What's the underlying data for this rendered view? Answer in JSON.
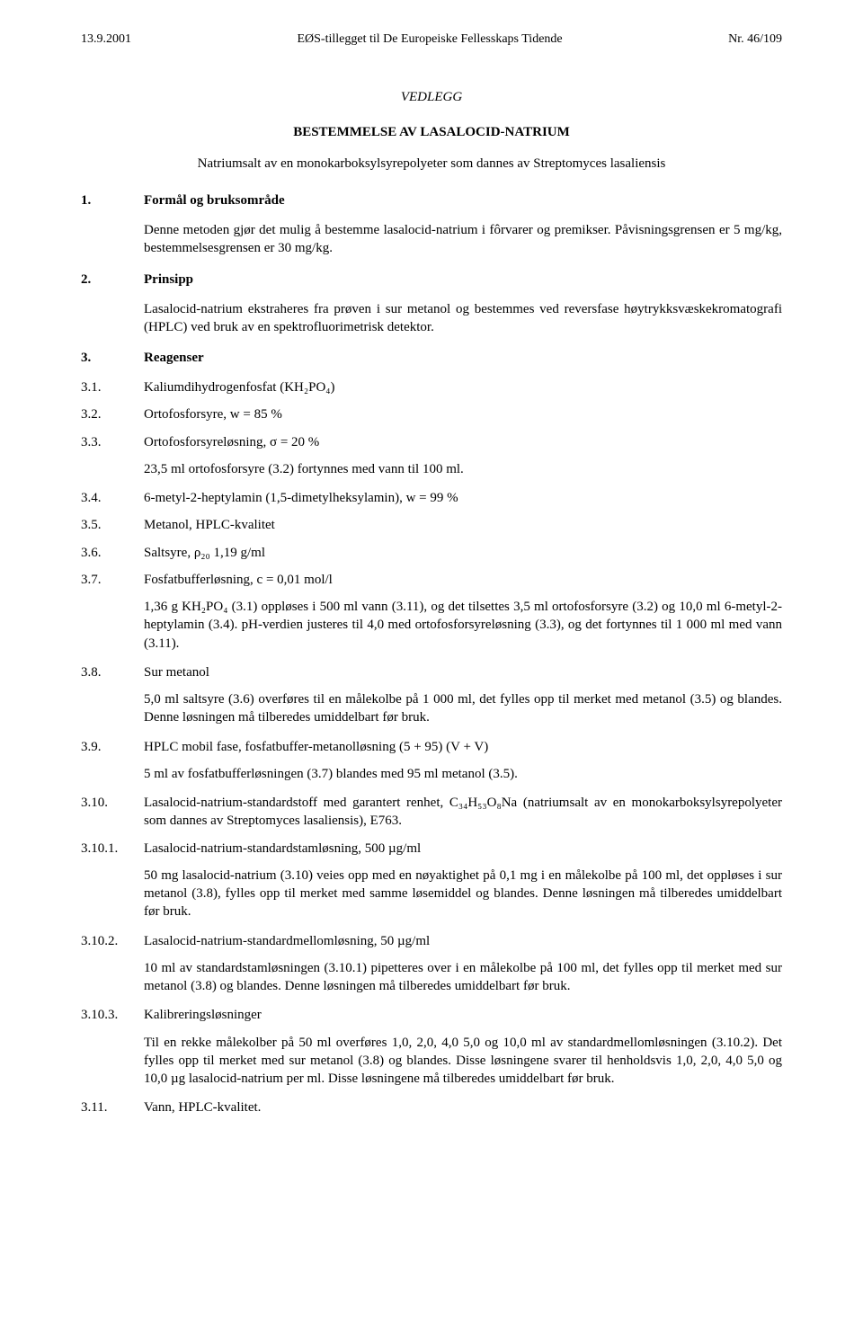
{
  "header": {
    "left": "13.9.2001",
    "center": "EØS-tillegget til De Europeiske Fellesskaps Tidende",
    "right": "Nr. 46/109"
  },
  "annex": "VEDLEGG",
  "title": "BESTEMMELSE AV LASALOCID-NATRIUM",
  "subtitle": "Natriumsalt av en monokarboksylsyrepolyeter som dannes av Streptomyces lasaliensis",
  "s1": {
    "num": "1.",
    "title": "Formål og bruksområde",
    "body": "Denne metoden gjør det mulig å bestemme lasalocid-natrium i fôrvarer og premikser. Påvisningsgrensen er 5 mg/kg, bestemmelsesgrensen er 30 mg/kg."
  },
  "s2": {
    "num": "2.",
    "title": "Prinsipp",
    "body": "Lasalocid-natrium ekstraheres fra prøven i sur metanol og bestemmes ved reversfase høytrykksvæskekromatografi (HPLC) ved bruk av en spektrofluorimetrisk detektor."
  },
  "s3": {
    "num": "3.",
    "title": "Reagenser"
  },
  "r": {
    "i1": {
      "n": "3.1.",
      "t": "Kaliumdihydrogenfosfat (KH₂PO₄)"
    },
    "i2": {
      "n": "3.2.",
      "t": "Ortofosforsyre, w = 85 %"
    },
    "i3": {
      "n": "3.3.",
      "t": "Ortofosforsyreløsning, σ = 20 %",
      "sub": "23,5 ml ortofosforsyre (3.2) fortynnes med vann til 100 ml."
    },
    "i4": {
      "n": "3.4.",
      "t": "6-metyl-2-heptylamin (1,5-dimetylheksylamin), w = 99 %"
    },
    "i5": {
      "n": "3.5.",
      "t": "Metanol, HPLC-kvalitet"
    },
    "i6": {
      "n": "3.6.",
      "t": "Saltsyre, ρ₂₀ 1,19 g/ml"
    },
    "i7": {
      "n": "3.7.",
      "t": "Fosfatbufferløsning, c = 0,01 mol/l",
      "sub": "1,36 g KH₂PO₄ (3.1) oppløses i 500 ml vann (3.11), og det tilsettes 3,5 ml ortofosforsyre (3.2) og 10,0 ml 6-metyl-2-heptylamin (3.4). pH-verdien justeres til 4,0 med ortofosforsyreløsning (3.3), og det fortynnes til 1 000 ml med vann (3.11)."
    },
    "i8": {
      "n": "3.8.",
      "t": "Sur metanol",
      "sub": "5,0 ml saltsyre (3.6) overføres til en målekolbe på 1 000 ml, det fylles opp til merket med metanol (3.5) og blandes. Denne løsningen må tilberedes umiddelbart før bruk."
    },
    "i9": {
      "n": "3.9.",
      "t": "HPLC mobil fase, fosfatbuffer-metanolløsning (5 + 95) (V + V)",
      "sub": "5 ml av fosfatbufferløsningen (3.7) blandes med 95 ml metanol (3.5)."
    },
    "i10": {
      "n": "3.10.",
      "t": "Lasalocid-natrium-standardstoff med garantert renhet, C₃₄H₅₃O₈Na (natriumsalt av en monokarboksylsyrepolyeter som dannes av Streptomyces lasaliensis), E763."
    },
    "i101": {
      "n": "3.10.1.",
      "t": "Lasalocid-natrium-standardstamløsning, 500 µg/ml",
      "sub": "50 mg lasalocid-natrium (3.10) veies opp med en nøyaktighet på 0,1 mg i en målekolbe på 100 ml, det oppløses i sur metanol (3.8), fylles opp til merket med samme løsemiddel og blandes. Denne løsningen må tilberedes umiddelbart før bruk."
    },
    "i102": {
      "n": "3.10.2.",
      "t": "Lasalocid-natrium-standardmellomløsning, 50 µg/ml",
      "sub": "10 ml av standardstamløsningen (3.10.1) pipetteres over i en målekolbe på 100 ml, det fylles opp til merket med sur metanol (3.8) og blandes. Denne løsningen må tilberedes umiddelbart før bruk."
    },
    "i103": {
      "n": "3.10.3.",
      "t": "Kalibreringsløsninger",
      "sub": "Til en rekke målekolber på 50 ml overføres 1,0, 2,0, 4,0 5,0 og 10,0 ml av standardmellomløsningen (3.10.2). Det fylles opp til merket med sur metanol (3.8) og blandes. Disse løsningene svarer til henholdsvis 1,0, 2,0, 4,0 5,0 og 10,0 µg lasalocid-natrium per ml. Disse løsningene må tilberedes umiddelbart før bruk."
    },
    "i11": {
      "n": "3.11.",
      "t": "Vann, HPLC-kvalitet."
    }
  }
}
